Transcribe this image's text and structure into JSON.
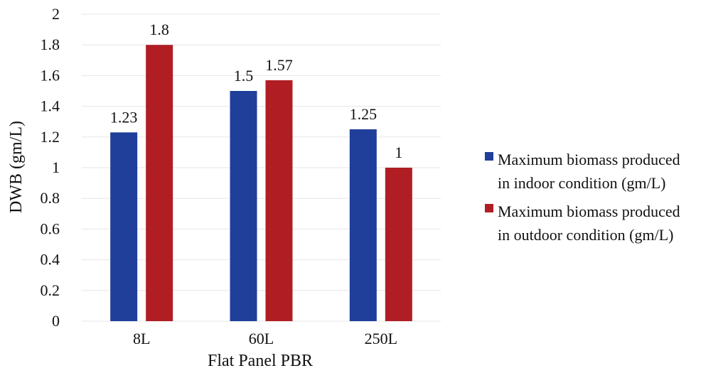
{
  "chart_data": {
    "type": "bar",
    "title": "",
    "xlabel": "Flat Panel PBR",
    "ylabel": "DWB (gm/L)",
    "categories": [
      "8L",
      "60L",
      "250L"
    ],
    "series": [
      {
        "name": "Maximum biomass produced in indoor condition (gm/L)",
        "name_lines": [
          "Maximum biomass produced",
          "in indoor condition (gm/L)"
        ],
        "color": "#1f3f9a",
        "values": [
          1.23,
          1.5,
          1.25
        ],
        "labels": [
          "1.23",
          "1.5",
          "1.25"
        ]
      },
      {
        "name": "Maximum biomass produced in outdoor condition (gm/L)",
        "name_lines": [
          "Maximum biomass produced",
          "in outdoor condition (gm/L)"
        ],
        "color": "#b01e24",
        "values": [
          1.8,
          1.57,
          1.0
        ],
        "labels": [
          "1.8",
          "1.57",
          "1"
        ]
      }
    ],
    "ylim": [
      0,
      2
    ],
    "yticks": [
      "0",
      "0.2",
      "0.4",
      "0.6",
      "0.8",
      "1",
      "1.2",
      "1.4",
      "1.6",
      "1.8",
      "2"
    ],
    "grid": true,
    "legend": "right"
  }
}
